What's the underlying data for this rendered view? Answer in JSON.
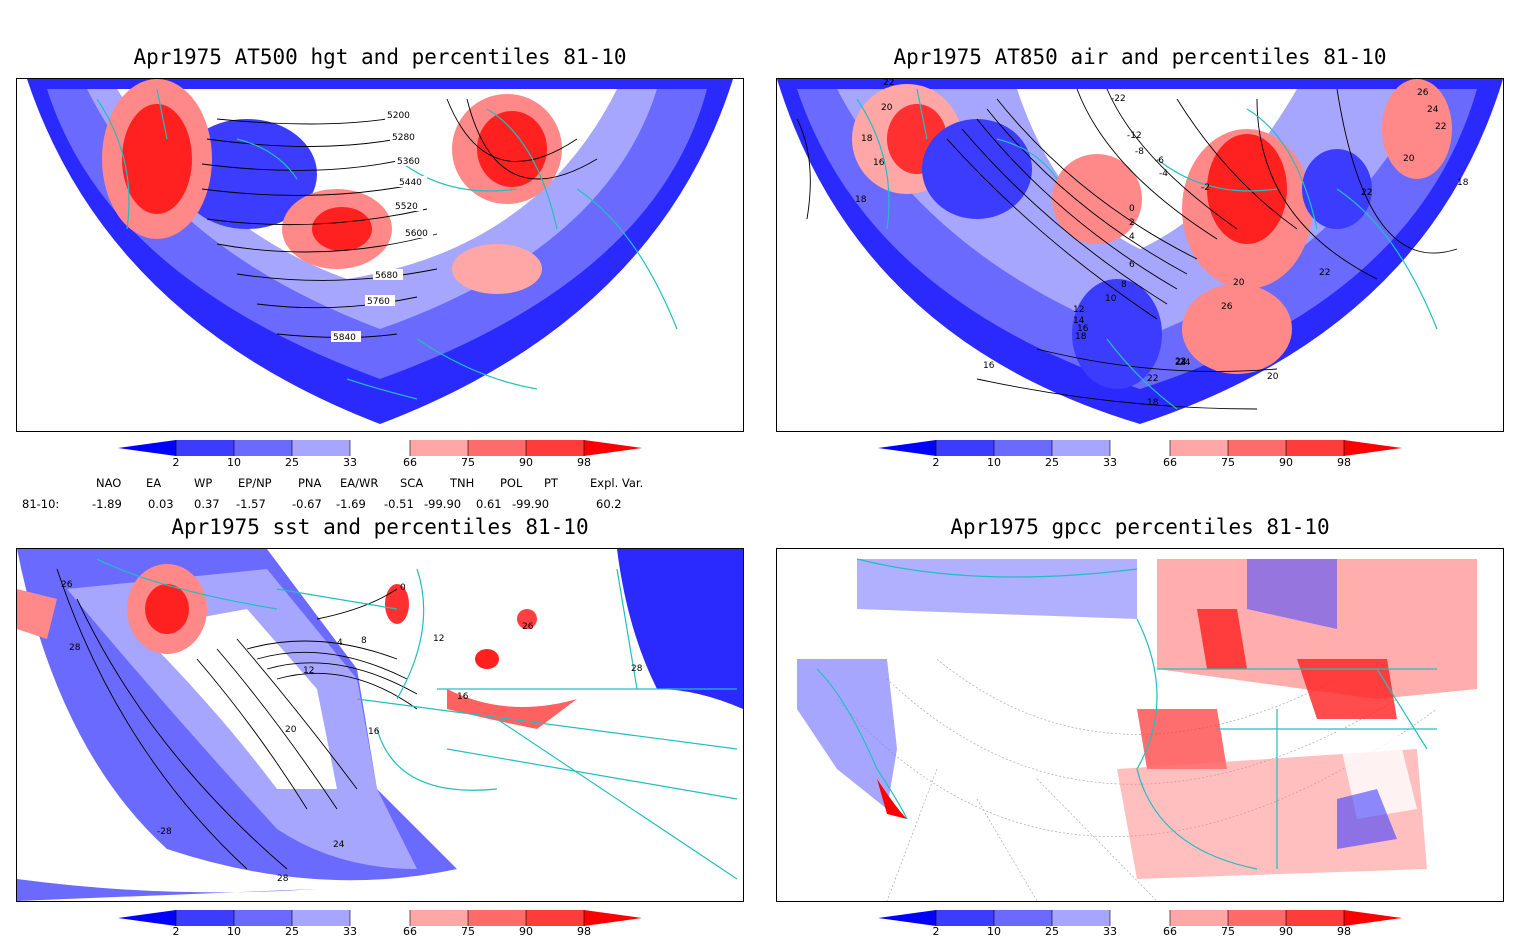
{
  "panels": [
    {
      "title": "Apr1975 AT500 hgt and percentiles 81-10",
      "contour_labels": [
        "5200",
        "5280",
        "5360",
        "5440",
        "5520",
        "5600",
        "5680",
        "5760",
        "5840"
      ]
    },
    {
      "title": "Apr1975 AT850 air and percentiles 81-10",
      "contour_labels": [
        "22",
        "20",
        "18",
        "16",
        "18",
        "-22",
        "-12",
        "-8",
        "-6",
        "-4",
        "-2",
        "0",
        "2",
        "4",
        "6",
        "8",
        "10",
        "12",
        "14",
        "16",
        "18",
        "20",
        "22",
        "24",
        "26",
        "22",
        "24",
        "22",
        "20",
        "18",
        "16",
        "26",
        "24",
        "22",
        "20",
        "18",
        "22"
      ]
    },
    {
      "title": "Apr1975 sst and percentiles 81-10",
      "contour_labels": [
        "26",
        "28",
        "0",
        "4",
        "8",
        "12",
        "20",
        "16",
        "24",
        "28",
        "28",
        "-28",
        "16",
        "12",
        "26"
      ]
    },
    {
      "title": "Apr1975 gpcc percentiles 81-10",
      "contour_labels": []
    }
  ],
  "colorbar": {
    "labels": [
      "2",
      "10",
      "25",
      "33",
      "66",
      "75",
      "90",
      "98"
    ],
    "colors": [
      "#0000ff",
      "#3c3cff",
      "#6a6aff",
      "#a6a6ff",
      "#ffa6a6",
      "#ff6a6a",
      "#ff3c3c",
      "#ff0000"
    ]
  },
  "teleconnections": {
    "header": [
      "NAO",
      "EA",
      "WP",
      "EP/NP",
      "PNA",
      "EA/WR",
      "SCA",
      "TNH",
      "POL",
      "PT",
      "Expl. Var."
    ],
    "row_label": "81-10:",
    "values": [
      "-1.89",
      "0.03",
      "0.37",
      "-1.57",
      "-0.67",
      "-1.69",
      "-0.51",
      "-99.90",
      "0.61",
      "-99.90",
      "60.2"
    ]
  },
  "colors": {
    "coast": "#20c0c0",
    "contour": "#000000"
  }
}
